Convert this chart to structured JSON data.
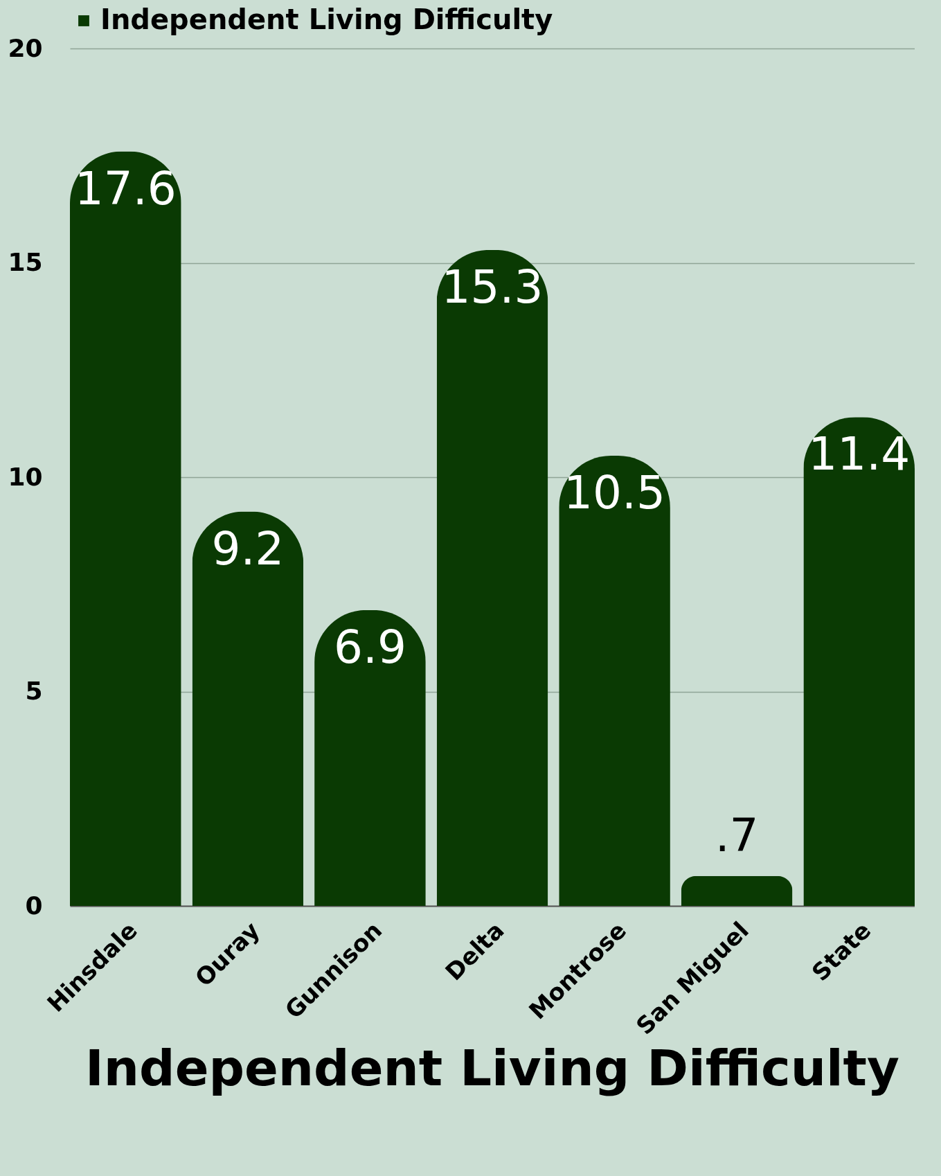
{
  "chart_data": {
    "type": "bar",
    "title": "Independent Living Difficulty",
    "categories": [
      "Hinsdale",
      "Ouray",
      "Gunnison",
      "Delta",
      "Montrose",
      "San Miguel",
      "State"
    ],
    "series": [
      {
        "name": "Independent Living Difficulty",
        "color": "#0a3a03",
        "values": [
          17.6,
          9.2,
          6.9,
          15.3,
          10.5,
          0.7,
          11.4
        ],
        "value_labels": [
          "17.6",
          "9.2",
          "6.9",
          "15.3",
          "10.5",
          ".7",
          "11.4"
        ]
      }
    ],
    "ylim": [
      0,
      20
    ],
    "yticks": [
      0,
      5,
      10,
      15,
      20
    ],
    "grid": "y",
    "legend": "top"
  }
}
